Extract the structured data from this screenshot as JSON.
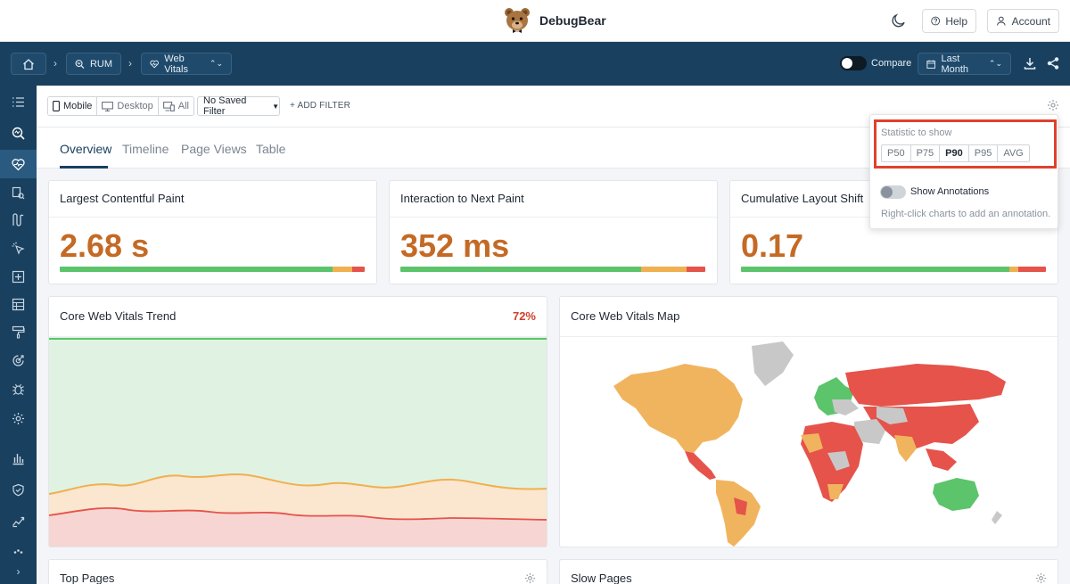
{
  "brand": {
    "name": "DebugBear"
  },
  "top_actions": {
    "help": "Help",
    "account": "Account"
  },
  "nav": {
    "breadcrumb": [
      "RUM",
      "Web Vitals"
    ],
    "compare_label": "Compare",
    "date_range": "Last Month"
  },
  "filters": {
    "devices": [
      "Mobile",
      "Desktop",
      "All"
    ],
    "selected_device": "Mobile",
    "saved_filter": "No Saved Filter",
    "add_filter": "+ ADD FILTER"
  },
  "tabs": [
    "Overview",
    "Timeline",
    "Page Views",
    "Table"
  ],
  "active_tab": "Overview",
  "metrics": [
    {
      "title": "Largest Contentful Paint",
      "value": "2.68 s",
      "good": 89.5,
      "ni": 6.5,
      "poor": 4.0
    },
    {
      "title": "Interaction to Next Paint",
      "value": "352 ms",
      "good": 79,
      "ni": 15,
      "poor": 6
    },
    {
      "title": "Cumulative Layout Shift",
      "value": "0.17",
      "good": 88,
      "ni": 3,
      "poor": 9
    }
  ],
  "trend": {
    "title": "Core Web Vitals Trend",
    "percent": "72%"
  },
  "map": {
    "title": "Core Web Vitals Map"
  },
  "lower_cards": {
    "top_pages": "Top Pages",
    "slow_pages": "Slow Pages"
  },
  "popover": {
    "statistic_label": "Statistic to show",
    "statistics": [
      "P50",
      "P75",
      "P90",
      "P95",
      "AVG"
    ],
    "selected_statistic": "P90",
    "annotations_label": "Show Annotations",
    "annotations_enabled": false,
    "hint": "Right-click charts to add an annotation."
  },
  "colors": {
    "nav_bg": "#19405f",
    "metric_value": "#c46a25",
    "good": "#5cc46b",
    "needs_improvement": "#f0b050",
    "poor": "#e5534b",
    "highlight": "#e0402c"
  },
  "sidebar_icons": [
    "list-icon",
    "rum-icon",
    "web-vitals-icon",
    "pages-icon",
    "flow-icon",
    "interaction-icon",
    "add-icon",
    "table-icon",
    "brush-icon",
    "target-icon",
    "bug-icon",
    "settings-icon",
    "bar-chart-icon",
    "shield-icon",
    "trend-icon",
    "more-icon"
  ]
}
